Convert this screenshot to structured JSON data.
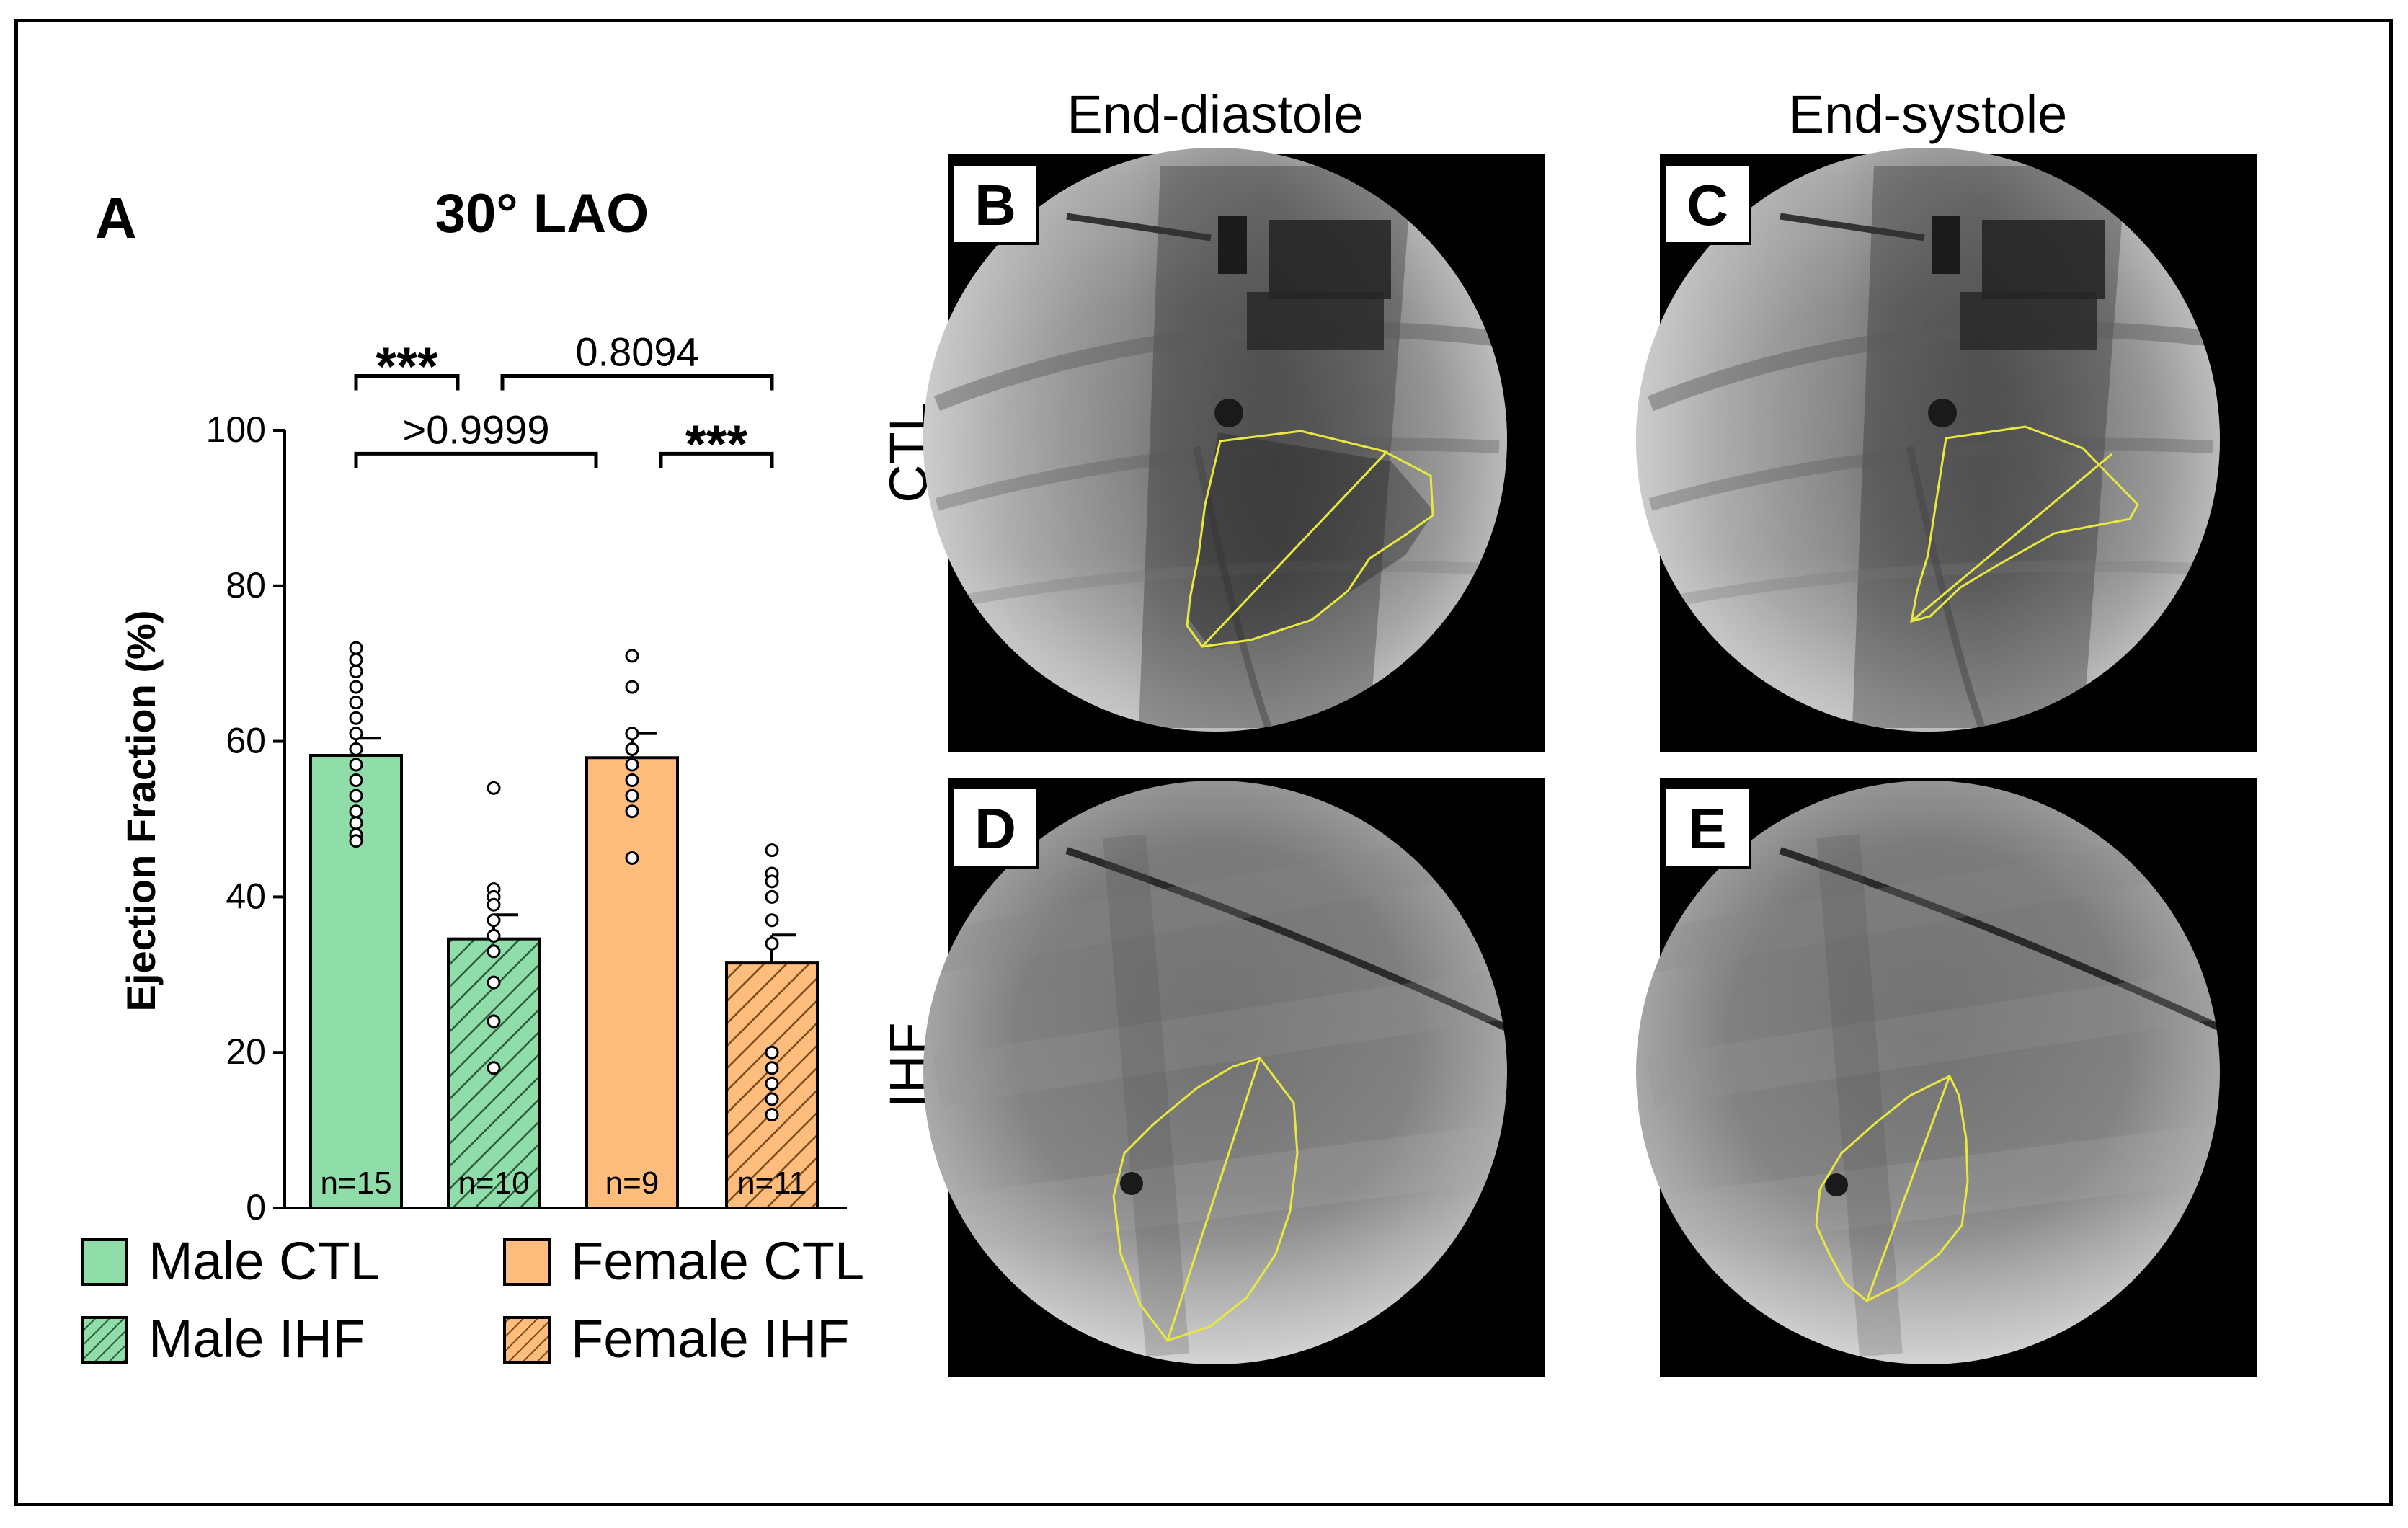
{
  "panel_letters": {
    "a": "A",
    "b": "B",
    "c": "C",
    "d": "D",
    "e": "E"
  },
  "column_headers": {
    "left": "End-diastole",
    "right": "End-systole"
  },
  "row_labels": {
    "top": "CTL",
    "bottom": "IHF"
  },
  "colors": {
    "male": "#8FDDA9",
    "female": "#FFBD7D",
    "lv_outline": "#E8E840",
    "frame": "#000000"
  },
  "chart_data": {
    "type": "bar",
    "title": "30° LAO",
    "ylabel": "Ejection Fraction (%)",
    "ylim": [
      0,
      100
    ],
    "yticks": [
      0,
      20,
      40,
      60,
      80,
      100
    ],
    "categories": [
      "Male CTL",
      "Male IHF",
      "Female CTL",
      "Female IHF"
    ],
    "values": [
      58.2,
      34.6,
      57.9,
      31.5
    ],
    "sem": [
      2.2,
      3.1,
      3.1,
      3.6
    ],
    "n_labels": [
      "n=15",
      "n=10",
      "n=9",
      "n=11"
    ],
    "fill_colors": [
      "#8FDDA9",
      "#8FDDA9",
      "#FFBD7D",
      "#FFBD7D"
    ],
    "hatched": [
      false,
      true,
      false,
      true
    ],
    "points": [
      [
        72,
        70.5,
        69,
        67,
        65,
        63,
        61,
        59,
        57,
        55,
        53,
        51,
        49.5,
        48,
        47.2
      ],
      [
        54,
        41,
        40,
        39,
        37,
        35,
        33,
        29,
        24,
        18
      ],
      [
        71,
        67,
        61,
        59,
        57,
        55,
        53,
        51,
        45
      ],
      [
        46,
        43,
        42,
        40,
        37,
        34,
        20,
        18,
        16,
        14,
        12
      ]
    ],
    "comparisons": [
      {
        "from": 0,
        "to": 1,
        "label": "***",
        "y": 107
      },
      {
        "from": 1,
        "to": 3,
        "label": "0.8094",
        "y": 107
      },
      {
        "from": 0,
        "to": 2,
        "label": ">0.9999",
        "y": 97
      },
      {
        "from": 2,
        "to": 3,
        "label": "***",
        "y": 97
      }
    ],
    "legend": [
      {
        "label": "Male CTL",
        "color": "#8FDDA9",
        "hatched": false
      },
      {
        "label": "Female CTL",
        "color": "#FFBD7D",
        "hatched": false
      },
      {
        "label": "Male IHF",
        "color": "#8FDDA9",
        "hatched": true
      },
      {
        "label": "Female IHF",
        "color": "#FFBD7D",
        "hatched": true
      }
    ],
    "legend_placement": "bottom",
    "grid": false
  }
}
